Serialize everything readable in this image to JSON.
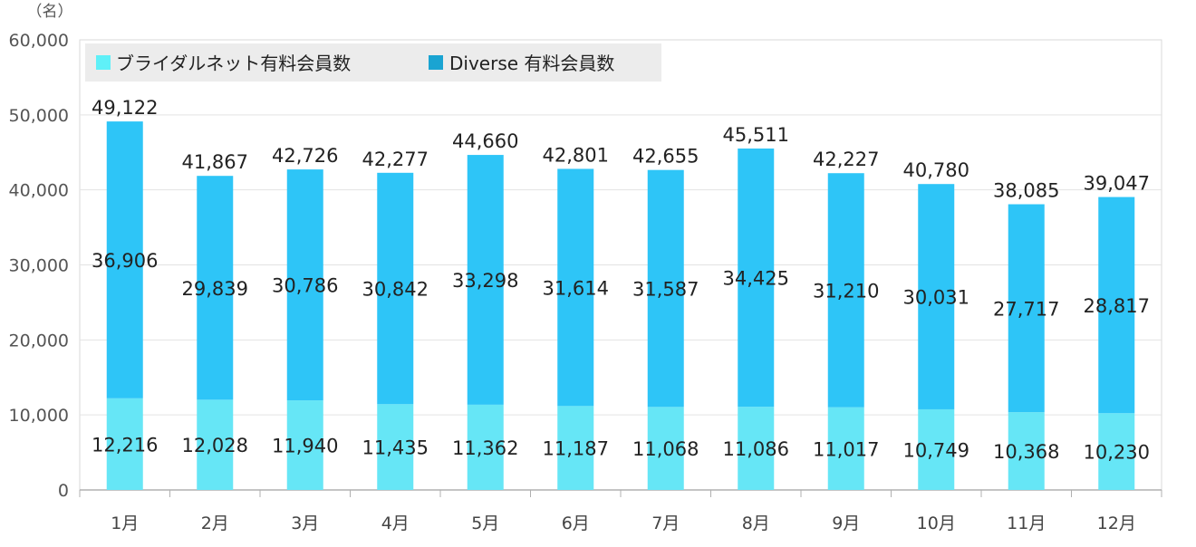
{
  "chart_data": {
    "type": "bar",
    "stacked": true,
    "unit_label": "（名）",
    "categories": [
      "1月",
      "2月",
      "3月",
      "4月",
      "5月",
      "6月",
      "7月",
      "8月",
      "9月",
      "10月",
      "11月",
      "12月"
    ],
    "series": [
      {
        "name": "ブライダルネット有料会員数",
        "color": "#66e6f6",
        "values": [
          12216,
          12028,
          11940,
          11435,
          11362,
          11187,
          11068,
          11086,
          11017,
          10749,
          10368,
          10230
        ],
        "labels": [
          "12,216",
          "12,028",
          "11,940",
          "11,435",
          "11,362",
          "11,187",
          "11,068",
          "11,086",
          "11,017",
          "10,749",
          "10,368",
          "10,230"
        ]
      },
      {
        "name": "Diverse 有料会員数",
        "color": "#2ec5f7",
        "values": [
          36906,
          29839,
          30786,
          30842,
          33298,
          31614,
          31587,
          34425,
          31210,
          30031,
          27717,
          28817
        ],
        "labels": [
          "36,906",
          "29,839",
          "30,786",
          "30,842",
          "33,298",
          "31,614",
          "31,587",
          "34,425",
          "31,210",
          "30,031",
          "27,717",
          "28,817"
        ]
      }
    ],
    "totals": [
      "49,122",
      "41,867",
      "42,726",
      "42,277",
      "44,660",
      "42,801",
      "42,655",
      "45,511",
      "42,227",
      "40,780",
      "38,085",
      "39,047"
    ],
    "y_ticks": [
      "0",
      "10,000",
      "20,000",
      "30,000",
      "40,000",
      "50,000",
      "60,000"
    ],
    "ylim": [
      0,
      60000
    ],
    "grid": true,
    "legend_position": "top-left",
    "legend_swatch_colors": [
      "#5ff0f8",
      "#1aa4d2"
    ],
    "title": "",
    "xlabel": "",
    "ylabel": ""
  }
}
